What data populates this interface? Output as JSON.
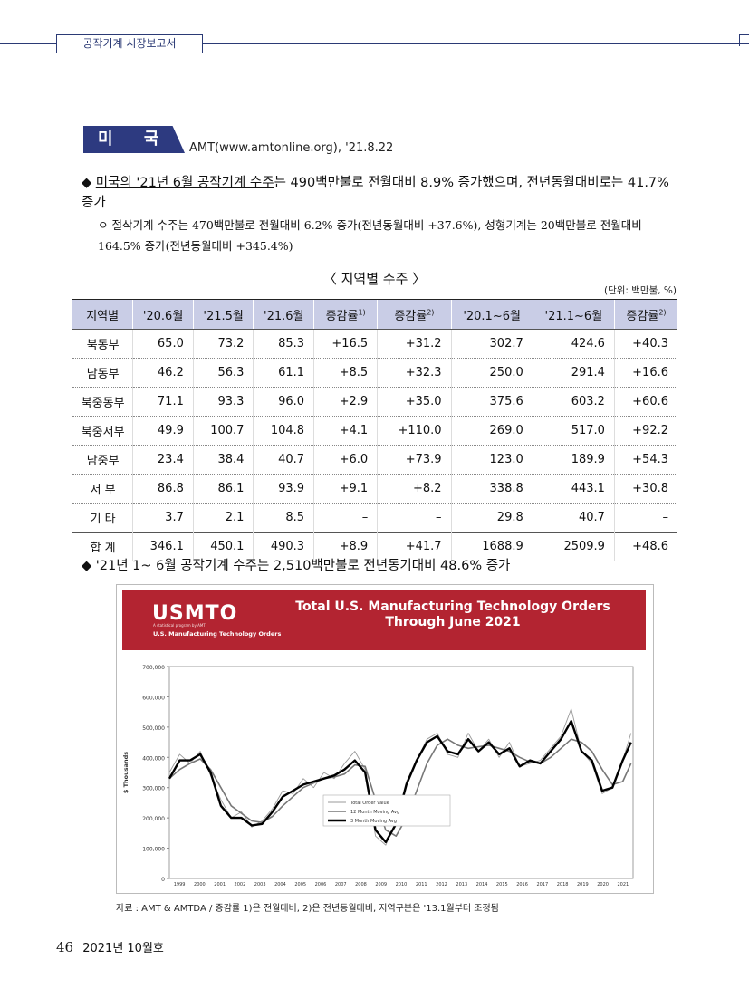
{
  "header": {
    "section_tab": "공작기계 시장보고서"
  },
  "country": {
    "label": "미 국",
    "source": "AMT(www.amtonline.org), '21.8.22"
  },
  "bullet1": {
    "marker": "◆",
    "underlined": "미국의 '21년 6월 공작기계 수주",
    "rest": "는 490백만불로 전월대비 8.9% 증가했으며, 전년동월대비로는 41.7% 증가"
  },
  "sub1": {
    "marker": "ㅇ",
    "text": "절삭기계 수주는 470백만불로 전월대비 6.2% 증가(전년동월대비 +37.6%), 성형기계는 20백만불로 전월대비 164.5% 증가(전년동월대비 +345.4%)"
  },
  "table": {
    "title": "〈 지역별 수주 〉",
    "unit": "(단위: 백만불, %)",
    "headers": [
      "지역별",
      "'20.6월",
      "'21.5월",
      "'21.6월",
      "증감률",
      "증감률",
      "'20.1~6월",
      "'21.1~6월",
      "증감률"
    ],
    "header_notes": [
      "",
      "",
      "",
      "",
      "1)",
      "2)",
      "",
      "",
      "2)"
    ],
    "rows": [
      [
        "북동부",
        "65.0",
        "73.2",
        "85.3",
        "+16.5",
        "+31.2",
        "302.7",
        "424.6",
        "+40.3"
      ],
      [
        "남동부",
        "46.2",
        "56.3",
        "61.1",
        "+8.5",
        "+32.3",
        "250.0",
        "291.4",
        "+16.6"
      ],
      [
        "북중동부",
        "71.1",
        "93.3",
        "96.0",
        "+2.9",
        "+35.0",
        "375.6",
        "603.2",
        "+60.6"
      ],
      [
        "북중서부",
        "49.9",
        "100.7",
        "104.8",
        "+4.1",
        "+110.0",
        "269.0",
        "517.0",
        "+92.2"
      ],
      [
        "남중부",
        "23.4",
        "38.4",
        "40.7",
        "+6.0",
        "+73.9",
        "123.0",
        "189.9",
        "+54.3"
      ],
      [
        "서 부",
        "86.8",
        "86.1",
        "93.9",
        "+9.1",
        "+8.2",
        "338.8",
        "443.1",
        "+30.8"
      ],
      [
        "기 타",
        "3.7",
        "2.1",
        "8.5",
        "–",
        "–",
        "29.8",
        "40.7",
        "–"
      ],
      [
        "합 계",
        "346.1",
        "450.1",
        "490.3",
        "+8.9",
        "+41.7",
        "1688.9",
        "2509.9",
        "+48.6"
      ]
    ]
  },
  "bullet2": {
    "marker": "◆",
    "underlined": "'21년 1~ 6월 공작기계 수주",
    "rest": "는 2,510백만불로 전년동기대비 48.6% 증가"
  },
  "figure": {
    "logo": "USMTO",
    "logo_tagline": "A statistical program by AMT",
    "logo_sub": "U.S. Manufacturing Technology Orders",
    "title_line1": "Total U.S. Manufacturing Technology Orders",
    "title_line2": "Through June 2021",
    "colors": {
      "banner": "#b32431",
      "total": "#999999",
      "ma12": "#777777",
      "ma3": "#000000"
    }
  },
  "chart_data": {
    "type": "line",
    "ylabel": "$ Thousands",
    "ylim": [
      0,
      700000
    ],
    "yticks": [
      "0",
      "100,000",
      "200,000",
      "300,000",
      "400,000",
      "500,000",
      "600,000",
      "700,000"
    ],
    "xticks": [
      "1999",
      "2000",
      "2001",
      "2002",
      "2003",
      "2004",
      "2005",
      "2006",
      "2007",
      "2008",
      "2009",
      "2010",
      "2011",
      "2012",
      "2013",
      "2014",
      "2015",
      "2016",
      "2017",
      "2018",
      "2019",
      "2020",
      "2021"
    ],
    "legend": [
      "Total Order Value",
      "12 Month Moving Avg",
      "3 Month Moving Avg"
    ],
    "legend_position": "bottom-right",
    "x": [
      1999.0,
      1999.5,
      2000.0,
      2000.5,
      2001.0,
      2001.5,
      2002.0,
      2002.5,
      2003.0,
      2003.5,
      2004.0,
      2004.5,
      2005.0,
      2005.5,
      2006.0,
      2006.5,
      2007.0,
      2007.5,
      2008.0,
      2008.5,
      2009.0,
      2009.5,
      2010.0,
      2010.5,
      2011.0,
      2011.5,
      2012.0,
      2012.5,
      2013.0,
      2013.5,
      2014.0,
      2014.5,
      2015.0,
      2015.5,
      2016.0,
      2016.5,
      2017.0,
      2017.5,
      2018.0,
      2018.5,
      2019.0,
      2019.5,
      2020.0,
      2020.5,
      2021.0,
      2021.4
    ],
    "series": [
      {
        "name": "Total Order Value",
        "values": [
          350000,
          410000,
          380000,
          420000,
          340000,
          260000,
          200000,
          220000,
          170000,
          190000,
          230000,
          290000,
          280000,
          330000,
          300000,
          350000,
          330000,
          380000,
          420000,
          360000,
          140000,
          110000,
          190000,
          320000,
          390000,
          460000,
          480000,
          410000,
          400000,
          480000,
          420000,
          460000,
          400000,
          450000,
          370000,
          380000,
          390000,
          430000,
          470000,
          560000,
          420000,
          380000,
          280000,
          300000,
          390000,
          480000
        ]
      },
      {
        "name": "12 Month Moving Avg",
        "values": [
          330000,
          360000,
          380000,
          395000,
          360000,
          300000,
          240000,
          215000,
          190000,
          185000,
          205000,
          240000,
          270000,
          300000,
          315000,
          330000,
          335000,
          345000,
          375000,
          370000,
          260000,
          160000,
          140000,
          200000,
          290000,
          380000,
          440000,
          460000,
          440000,
          430000,
          435000,
          440000,
          430000,
          420000,
          400000,
          385000,
          380000,
          400000,
          430000,
          460000,
          450000,
          420000,
          360000,
          310000,
          320000,
          380000
        ]
      },
      {
        "name": "3 Month Moving Avg",
        "values": [
          330000,
          390000,
          390000,
          410000,
          350000,
          240000,
          200000,
          200000,
          175000,
          180000,
          220000,
          270000,
          290000,
          310000,
          320000,
          330000,
          340000,
          360000,
          390000,
          350000,
          160000,
          120000,
          180000,
          310000,
          390000,
          450000,
          470000,
          420000,
          410000,
          460000,
          420000,
          450000,
          410000,
          430000,
          370000,
          390000,
          380000,
          420000,
          460000,
          520000,
          420000,
          390000,
          290000,
          300000,
          390000,
          450000
        ]
      }
    ]
  },
  "caption": "자료 : AMT & AMTDA / 증감률 1)은 전월대비, 2)은 전년동월대비, 지역구분은 '13.1월부터 조정됨",
  "footer": {
    "page": "46",
    "issue": "2021년 10월호"
  }
}
